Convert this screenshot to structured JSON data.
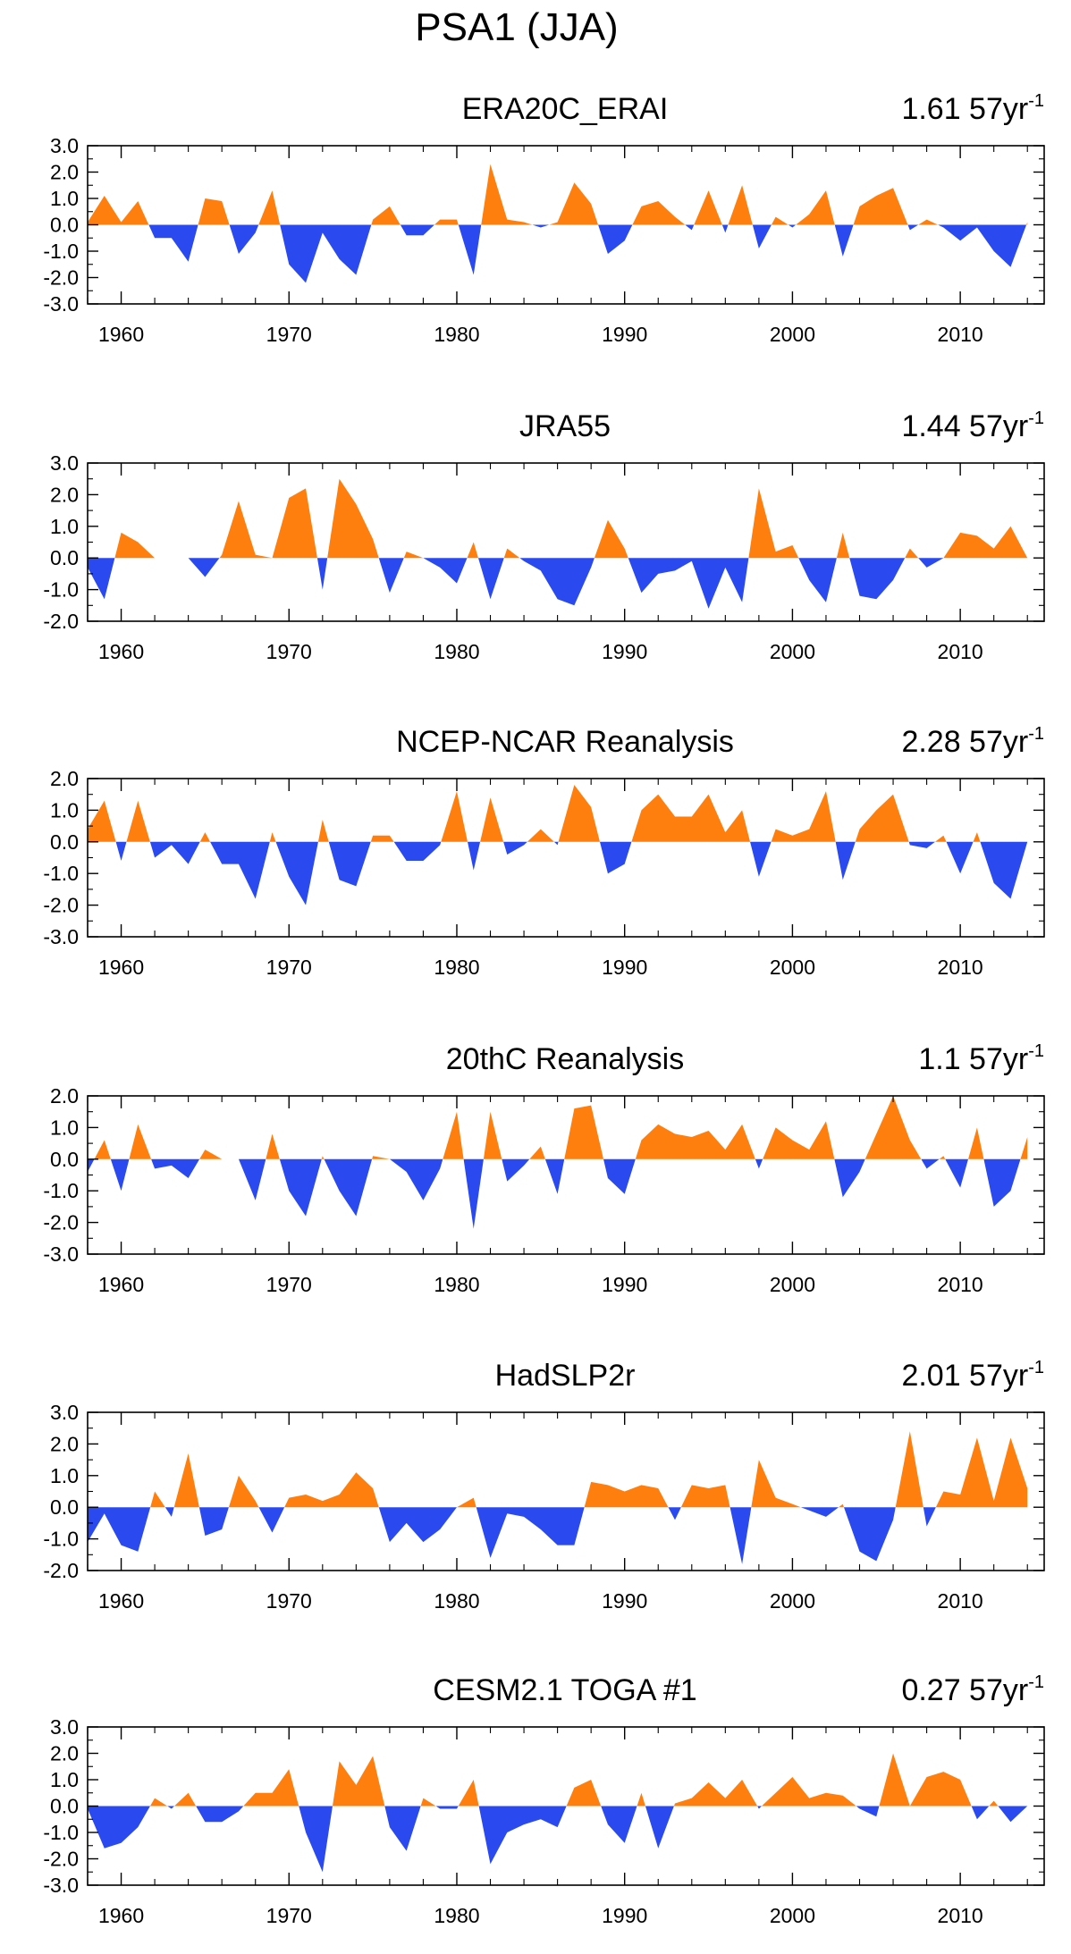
{
  "figure_title": "PSA1 (JJA)",
  "colors": {
    "positive": "#ff7f0e",
    "negative": "#2a4af0",
    "axis": "#000000"
  },
  "chart_data": [
    {
      "type": "area",
      "title": "ERA20C_ERAI",
      "stat": "1.61 57yr",
      "stat_sup": "-1",
      "x_ticks": [
        "1960",
        "1970",
        "1980",
        "1990",
        "2000",
        "2010"
      ],
      "y_ticks": [
        "3.0",
        "2.0",
        "1.0",
        "0.0",
        "-1.0",
        "-2.0",
        "-3.0"
      ],
      "ylim": [
        -3,
        3
      ],
      "xlim": [
        1958,
        2015
      ],
      "years_start": 1958,
      "values": [
        0.1,
        1.1,
        0.1,
        0.9,
        -0.5,
        -0.5,
        -1.4,
        1.0,
        0.9,
        -1.1,
        -0.3,
        1.3,
        -1.5,
        -2.2,
        -0.3,
        -1.3,
        -1.9,
        0.2,
        0.7,
        -0.4,
        -0.4,
        0.2,
        0.2,
        -1.9,
        2.3,
        0.2,
        0.1,
        -0.1,
        0.1,
        1.6,
        0.8,
        -1.1,
        -0.6,
        0.7,
        0.9,
        0.3,
        -0.2,
        1.3,
        -0.3,
        1.5,
        -0.9,
        0.3,
        -0.1,
        0.4,
        1.3,
        -1.2,
        0.7,
        1.1,
        1.4,
        -0.2,
        0.2,
        -0.1,
        -0.6,
        -0.1,
        -1.0,
        -1.6,
        0.1
      ]
    },
    {
      "type": "area",
      "title": "JRA55",
      "stat": "1.44 57yr",
      "stat_sup": "-1",
      "x_ticks": [
        "1960",
        "1970",
        "1980",
        "1990",
        "2000",
        "2010"
      ],
      "y_ticks": [
        "3.0",
        "2.0",
        "1.0",
        "0.0",
        "-1.0",
        "-2.0"
      ],
      "ylim": [
        -2,
        3
      ],
      "xlim": [
        1958,
        2015
      ],
      "years_start": 1958,
      "values": [
        -0.3,
        -1.3,
        0.8,
        0.5,
        0.0,
        0.0,
        0.0,
        -0.6,
        0.1,
        1.8,
        0.1,
        0.0,
        1.9,
        2.2,
        -1.0,
        2.5,
        1.7,
        0.6,
        -1.1,
        0.2,
        0.0,
        -0.3,
        -0.8,
        0.5,
        -1.3,
        0.3,
        -0.1,
        -0.4,
        -1.3,
        -1.5,
        -0.3,
        1.2,
        0.3,
        -1.1,
        -0.5,
        -0.4,
        -0.1,
        -1.6,
        -0.3,
        -1.4,
        2.2,
        0.2,
        0.4,
        -0.7,
        -1.4,
        0.8,
        -1.2,
        -1.3,
        -0.7,
        0.3,
        -0.3,
        0.0,
        0.8,
        0.7,
        0.3,
        1.0,
        0.0
      ]
    },
    {
      "type": "area",
      "title": "NCEP-NCAR Reanalysis",
      "stat": "2.28 57yr",
      "stat_sup": "-1",
      "x_ticks": [
        "1960",
        "1970",
        "1980",
        "1990",
        "2000",
        "2010"
      ],
      "y_ticks": [
        "2.0",
        "1.0",
        "0.0",
        "-1.0",
        "-2.0",
        "-3.0"
      ],
      "ylim": [
        -3,
        2
      ],
      "xlim": [
        1958,
        2015
      ],
      "years_start": 1958,
      "values": [
        0.4,
        1.3,
        -0.6,
        1.3,
        -0.5,
        -0.1,
        -0.7,
        0.3,
        -0.7,
        -0.7,
        -1.8,
        0.3,
        -1.1,
        -2.0,
        0.7,
        -1.2,
        -1.4,
        0.2,
        0.2,
        -0.6,
        -0.6,
        -0.1,
        1.6,
        -0.9,
        1.4,
        -0.4,
        -0.1,
        0.4,
        -0.1,
        1.8,
        1.1,
        -1.0,
        -0.7,
        1.0,
        1.5,
        0.8,
        0.8,
        1.5,
        0.3,
        1.0,
        -1.1,
        0.4,
        0.2,
        0.4,
        1.6,
        -1.2,
        0.4,
        1.0,
        1.5,
        -0.1,
        -0.2,
        0.2,
        -1.0,
        0.3,
        -1.3,
        -1.8,
        0.0
      ]
    },
    {
      "type": "area",
      "title": "20thC Reanalysis",
      "stat": "1.1 57yr",
      "stat_sup": "-1",
      "x_ticks": [
        "1960",
        "1970",
        "1980",
        "1990",
        "2000",
        "2010"
      ],
      "y_ticks": [
        "2.0",
        "1.0",
        "0.0",
        "-1.0",
        "-2.0",
        "-3.0"
      ],
      "ylim": [
        -3,
        2
      ],
      "xlim": [
        1958,
        2015
      ],
      "years_start": 1958,
      "values": [
        -0.4,
        0.6,
        -1.0,
        1.1,
        -0.3,
        -0.2,
        -0.6,
        0.3,
        0.0,
        0.0,
        -1.3,
        0.8,
        -1.0,
        -1.8,
        0.1,
        -1.0,
        -1.8,
        0.1,
        0.0,
        -0.4,
        -1.3,
        -0.3,
        1.5,
        -2.2,
        1.5,
        -0.7,
        -0.2,
        0.4,
        -1.1,
        1.6,
        1.7,
        -0.6,
        -1.1,
        0.6,
        1.1,
        0.8,
        0.7,
        0.9,
        0.3,
        1.1,
        -0.3,
        1.0,
        0.6,
        0.3,
        1.2,
        -1.2,
        -0.4,
        0.8,
        2.0,
        0.6,
        -0.3,
        0.1,
        -0.9,
        1.0,
        -1.5,
        -1.0,
        0.7
      ]
    },
    {
      "type": "area",
      "title": "HadSLP2r",
      "stat": "2.01 57yr",
      "stat_sup": "-1",
      "x_ticks": [
        "1960",
        "1970",
        "1980",
        "1990",
        "2000",
        "2010"
      ],
      "y_ticks": [
        "3.0",
        "2.0",
        "1.0",
        "0.0",
        "-1.0",
        "-2.0"
      ],
      "ylim": [
        -2,
        3
      ],
      "xlim": [
        1958,
        2015
      ],
      "years_start": 1958,
      "values": [
        -1.1,
        -0.2,
        -1.2,
        -1.4,
        0.5,
        -0.3,
        1.7,
        -0.9,
        -0.7,
        1.0,
        0.2,
        -0.8,
        0.3,
        0.4,
        0.2,
        0.4,
        1.1,
        0.6,
        -1.1,
        -0.5,
        -1.1,
        -0.7,
        0.0,
        0.3,
        -1.6,
        -0.2,
        -0.3,
        -0.7,
        -1.2,
        -1.2,
        0.8,
        0.7,
        0.5,
        0.7,
        0.6,
        -0.4,
        0.7,
        0.6,
        0.7,
        -1.8,
        1.5,
        0.3,
        0.1,
        -0.1,
        -0.3,
        0.1,
        -1.4,
        -1.7,
        -0.4,
        2.4,
        -0.6,
        0.5,
        0.4,
        2.2,
        0.2,
        2.2,
        0.6
      ]
    },
    {
      "type": "area",
      "title": "CESM2.1 TOGA #1",
      "stat": "0.27 57yr",
      "stat_sup": "-1",
      "x_ticks": [
        "1960",
        "1970",
        "1980",
        "1990",
        "2000",
        "2010"
      ],
      "y_ticks": [
        "3.0",
        "2.0",
        "1.0",
        "0.0",
        "-1.0",
        "-2.0",
        "-3.0"
      ],
      "ylim": [
        -3,
        3
      ],
      "xlim": [
        1958,
        2015
      ],
      "years_start": 1958,
      "values": [
        -0.1,
        -1.6,
        -1.4,
        -0.8,
        0.3,
        -0.1,
        0.5,
        -0.6,
        -0.6,
        -0.2,
        0.5,
        0.5,
        1.4,
        -1.0,
        -2.5,
        1.7,
        0.8,
        1.9,
        -0.8,
        -1.7,
        0.3,
        -0.1,
        -0.1,
        1.0,
        -2.2,
        -1.0,
        -0.7,
        -0.5,
        -0.8,
        0.7,
        1.0,
        -0.7,
        -1.4,
        0.5,
        -1.6,
        0.1,
        0.3,
        0.9,
        0.3,
        1.0,
        -0.1,
        0.5,
        1.1,
        0.3,
        0.5,
        0.4,
        -0.1,
        -0.4,
        2.0,
        0.0,
        1.1,
        1.3,
        1.0,
        -0.5,
        0.2,
        -0.6,
        0.0
      ]
    }
  ]
}
